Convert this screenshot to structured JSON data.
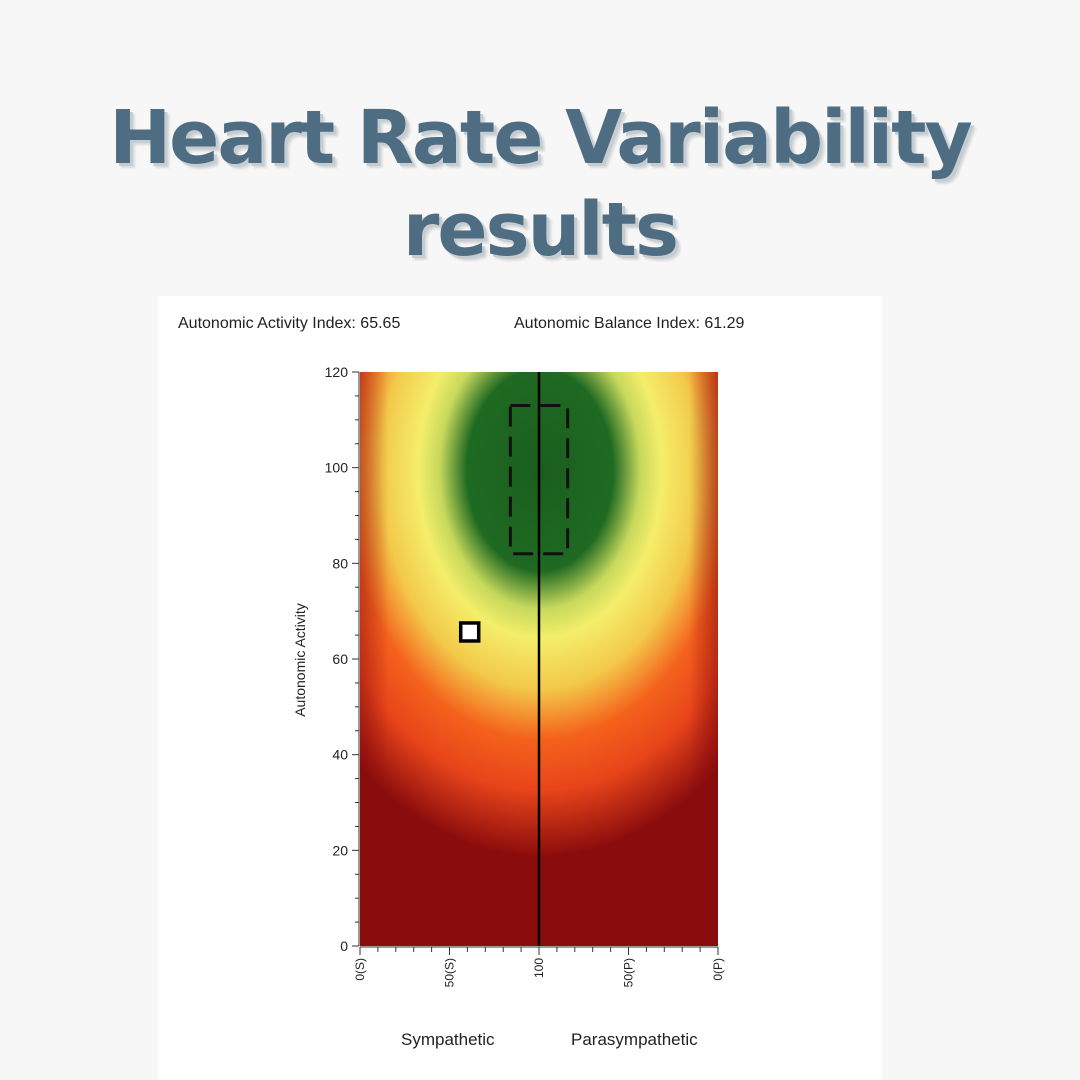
{
  "title": {
    "line1": "Heart Rate Variability",
    "line2": "results"
  },
  "indices": {
    "activity": "Autonomic Activity Index: 65.65",
    "balance": "Autonomic Balance Index: 61.29"
  },
  "bottom_labels": {
    "left": "Sympathetic",
    "right": "Parasympathetic"
  },
  "colors": {
    "title": "#4e6d82",
    "optimal": "#1f6a22",
    "good": "#f4ee6a",
    "warning": "#f4621c",
    "poor": "#8b0c0d"
  },
  "chart_data": {
    "type": "heatmap",
    "ylabel": "Autonomic Activity",
    "ylim": [
      0,
      120
    ],
    "y_ticks": [
      0,
      20,
      40,
      60,
      80,
      100,
      120
    ],
    "x_tick_labels": [
      "0(S)",
      "50(S)",
      "100",
      "50(P)",
      "0(P)"
    ],
    "xlim": [
      0,
      200
    ],
    "x_ticks_pos": [
      0,
      50,
      100,
      150,
      200
    ],
    "center_line_x": 100,
    "target_box": {
      "x": [
        84,
        116
      ],
      "y": [
        82,
        113
      ]
    },
    "marker": {
      "x": 61.29,
      "y": 65.65
    },
    "grid": false
  }
}
